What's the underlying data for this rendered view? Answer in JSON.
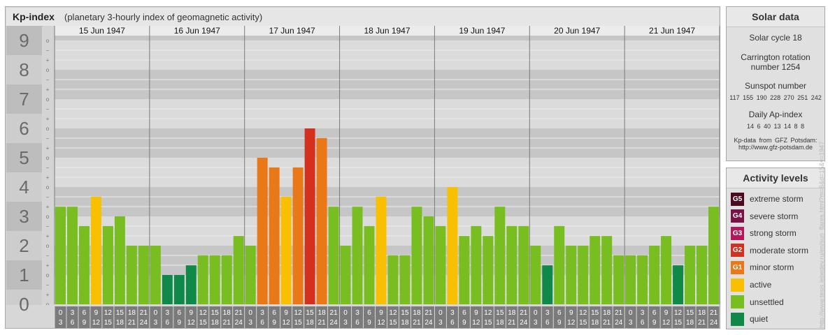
{
  "header": {
    "title": "Kp-index",
    "subtitle": "(planetary 3-hourly index of geomagnetic activity)"
  },
  "chart_data": {
    "type": "bar",
    "y_ticks": [
      "0",
      "1",
      "2",
      "3",
      "4",
      "5",
      "6",
      "7",
      "8",
      "9"
    ],
    "minor_tick_labels": [
      "+",
      "o",
      "−"
    ],
    "ylim": [
      0,
      9.33
    ],
    "days": [
      "15 Jun 1947",
      "16 Jun 1947",
      "17 Jun 1947",
      "18 Jun 1947",
      "19 Jun 1947",
      "20 Jun 1947",
      "21 Jun 1947"
    ],
    "time_labels_top": [
      "0",
      "3",
      "6",
      "9",
      "12",
      "15",
      "18",
      "21"
    ],
    "time_labels_bottom": [
      "3",
      "6",
      "9",
      "12",
      "15",
      "18",
      "21",
      "24"
    ],
    "values": [
      [
        3.33,
        3.33,
        2.67,
        3.67,
        2.67,
        3.0,
        2.0,
        2.0
      ],
      [
        2.0,
        1.0,
        1.0,
        1.33,
        1.67,
        1.67,
        1.67,
        2.33
      ],
      [
        2.0,
        5.0,
        4.67,
        3.67,
        4.67,
        6.0,
        5.67,
        3.33
      ],
      [
        2.0,
        3.33,
        2.67,
        3.67,
        1.67,
        1.67,
        3.33,
        3.0
      ],
      [
        2.67,
        4.0,
        2.33,
        2.67,
        2.33,
        3.33,
        2.67,
        2.67
      ],
      [
        2.0,
        1.33,
        2.67,
        2.0,
        2.0,
        2.33,
        2.33,
        1.67
      ],
      [
        1.67,
        1.67,
        2.0,
        2.33,
        1.33,
        2.0,
        2.0,
        3.33
      ]
    ]
  },
  "solar_panel": {
    "title": "Solar data",
    "cycle": "Solar cycle 18",
    "carrington_line1": "Carrington rotation",
    "carrington_line2": "number 1254",
    "sunspot_title": "Sunspot number",
    "sunspot_values": "117  155  190  228  270  251  242",
    "ap_title": "Daily Ap-index",
    "ap_values": "14  6  40  13  14  8  8",
    "source_line1": "Kp-data from GFZ Potsdam:",
    "source_line2": "http://www.gfz-potsdam.de"
  },
  "activity_panel": {
    "title": "Activity levels",
    "levels": [
      {
        "code": "G5",
        "label": "extreme storm",
        "color": "#4a0a22"
      },
      {
        "code": "G4",
        "label": "severe storm",
        "color": "#7a1248"
      },
      {
        "code": "G3",
        "label": "strong storm",
        "color": "#b5185a"
      },
      {
        "code": "G2",
        "label": "moderate storm",
        "color": "#d43020"
      },
      {
        "code": "G1",
        "label": "minor storm",
        "color": "#e87818"
      },
      {
        "code": "",
        "label": "active",
        "color": "#f8c000"
      },
      {
        "code": "",
        "label": "unsettled",
        "color": "#78be20"
      },
      {
        "code": "",
        "label": "quiet",
        "color": "#108848"
      }
    ]
  },
  "watermark": "http://www.tesis.lebedev.ru/en/sun_flares.html?m=6&d=15&y=1947"
}
